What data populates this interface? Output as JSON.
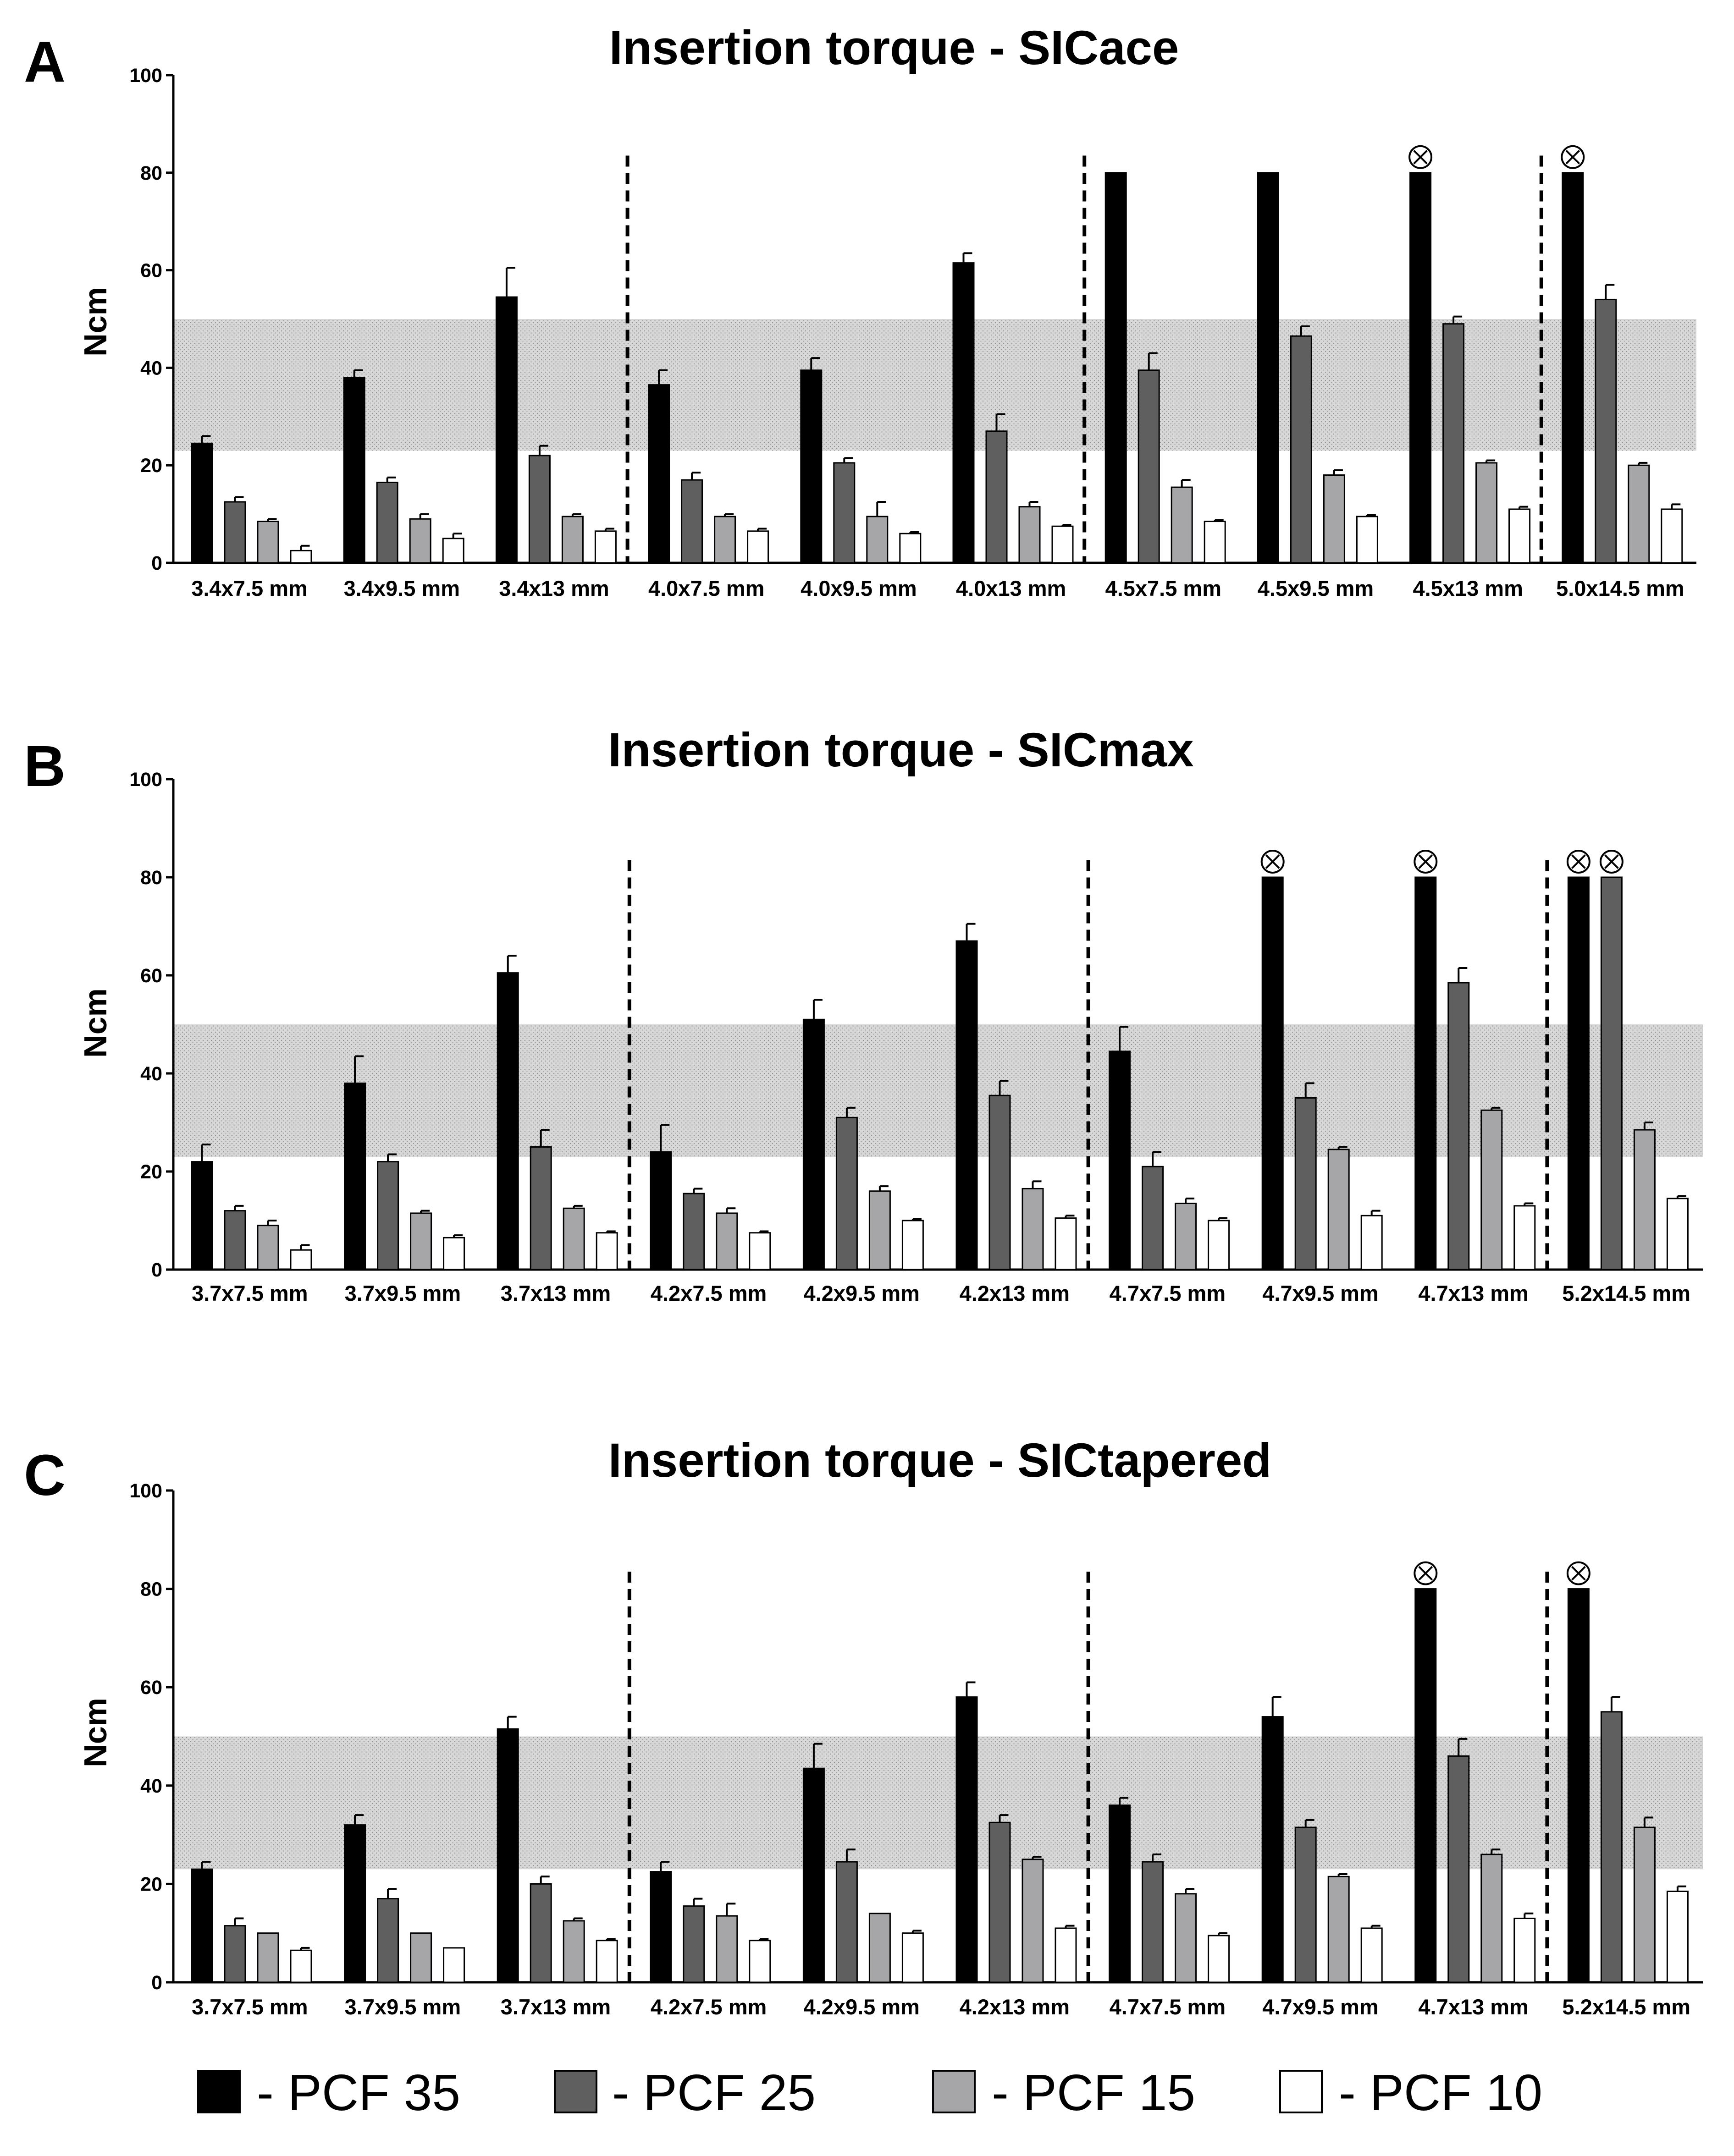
{
  "legend": [
    {
      "label": "- PCF 35",
      "color": "#000000"
    },
    {
      "label": "- PCF 25",
      "color": "#5f5f5f"
    },
    {
      "label": "- PCF 15",
      "color": "#a6a6a8"
    },
    {
      "label": "- PCF 10",
      "color": "#ffffff"
    }
  ],
  "shaded_band": {
    "from": 23,
    "to": 50,
    "color": "#d4d4d4"
  },
  "chart_data": [
    {
      "panel": "A",
      "type": "bar",
      "title": "Insertion torque - SICace",
      "ylabel": "Ncm",
      "xlabel": "",
      "ylim": [
        0,
        100
      ],
      "yticks": [
        0,
        20,
        40,
        60,
        80,
        100
      ],
      "categories": [
        "3.4x7.5 mm",
        "3.4x9.5 mm",
        "3.4x13 mm",
        "4.0x7.5 mm",
        "4.0x9.5 mm",
        "4.0x13 mm",
        "4.5x7.5 mm",
        "4.5x9.5 mm",
        "4.5x13 mm",
        "5.0x14.5 mm"
      ],
      "group_dividers_after": [
        2,
        5,
        8
      ],
      "series": [
        {
          "name": "PCF 35",
          "values": [
            24.5,
            38,
            54.5,
            36.5,
            39.5,
            61.5,
            80,
            80,
            80,
            80
          ],
          "errors": [
            1.5,
            1.5,
            6,
            3,
            2.5,
            2,
            0,
            0,
            0,
            0
          ]
        },
        {
          "name": "PCF 25",
          "values": [
            12.5,
            16.5,
            22,
            17,
            20.5,
            27,
            39.5,
            46.5,
            49,
            54
          ],
          "errors": [
            1,
            1,
            2,
            1.5,
            1,
            3.5,
            3.5,
            2,
            1.5,
            3
          ]
        },
        {
          "name": "PCF 15",
          "values": [
            8.5,
            9,
            9.5,
            9.5,
            9.5,
            11.5,
            15.5,
            18,
            20.5,
            20
          ],
          "errors": [
            0.5,
            1,
            0.5,
            0.5,
            3,
            1,
            1.5,
            1,
            0.5,
            0.5
          ]
        },
        {
          "name": "PCF 10",
          "values": [
            2.5,
            5,
            6.5,
            6.5,
            6,
            7.5,
            8.5,
            9.5,
            11,
            11
          ],
          "errors": [
            1,
            1,
            0.5,
            0.5,
            0.3,
            0.3,
            0.3,
            0.3,
            0.5,
            1
          ]
        }
      ],
      "exceeded_markers": [
        [
          8,
          0
        ],
        [
          9,
          0
        ]
      ]
    },
    {
      "panel": "B",
      "type": "bar",
      "title": "Insertion torque - SICmax",
      "ylabel": "Ncm",
      "xlabel": "",
      "ylim": [
        0,
        100
      ],
      "yticks": [
        0,
        20,
        40,
        60,
        80,
        100
      ],
      "categories": [
        "3.7x7.5 mm",
        "3.7x9.5 mm",
        "3.7x13 mm",
        "4.2x7.5 mm",
        "4.2x9.5 mm",
        "4.2x13 mm",
        "4.7x7.5 mm",
        "4.7x9.5 mm",
        "4.7x13 mm",
        "5.2x14.5 mm"
      ],
      "group_dividers_after": [
        2,
        5,
        8
      ],
      "series": [
        {
          "name": "PCF 35",
          "values": [
            22,
            38,
            60.5,
            24,
            51,
            67,
            44.5,
            80,
            80,
            80
          ],
          "errors": [
            3.5,
            5.5,
            3.5,
            5.5,
            4,
            3.5,
            5,
            0,
            0,
            0
          ]
        },
        {
          "name": "PCF 25",
          "values": [
            12,
            22,
            25,
            15.5,
            31,
            35.5,
            21,
            35,
            58.5,
            80
          ],
          "errors": [
            1,
            1.5,
            3.5,
            1,
            2,
            3,
            3,
            3,
            3,
            0
          ]
        },
        {
          "name": "PCF 15",
          "values": [
            9,
            11.5,
            12.5,
            11.5,
            16,
            16.5,
            13.5,
            24.5,
            32.5,
            28.5
          ],
          "errors": [
            1,
            0.5,
            0.5,
            1,
            1,
            1.5,
            1,
            0.5,
            0.5,
            1.5
          ]
        },
        {
          "name": "PCF 10",
          "values": [
            4,
            6.5,
            7.5,
            7.5,
            10,
            10.5,
            10,
            11,
            13,
            14.5
          ],
          "errors": [
            1,
            0.5,
            0.3,
            0.3,
            0.3,
            0.5,
            0.5,
            1,
            0.5,
            0.5
          ]
        }
      ],
      "exceeded_markers": [
        [
          7,
          0
        ],
        [
          8,
          0
        ],
        [
          9,
          0
        ],
        [
          9,
          1
        ]
      ]
    },
    {
      "panel": "C",
      "type": "bar",
      "title": "Insertion torque - SICtapered",
      "ylabel": "Ncm",
      "xlabel": "",
      "ylim": [
        0,
        100
      ],
      "yticks": [
        0,
        20,
        40,
        60,
        80,
        100
      ],
      "categories": [
        "3.7x7.5 mm",
        "3.7x9.5 mm",
        "3.7x13 mm",
        "4.2x7.5 mm",
        "4.2x9.5 mm",
        "4.2x13 mm",
        "4.7x7.5 mm",
        "4.7x9.5 mm",
        "4.7x13 mm",
        "5.2x14.5 mm"
      ],
      "group_dividers_after": [
        2,
        5,
        8
      ],
      "series": [
        {
          "name": "PCF 35",
          "values": [
            23,
            32,
            51.5,
            22.5,
            43.5,
            58,
            36,
            54,
            80,
            80
          ],
          "errors": [
            1.5,
            2,
            2.5,
            2,
            5,
            3,
            1.5,
            4,
            0,
            0
          ]
        },
        {
          "name": "PCF 25",
          "values": [
            11.5,
            17,
            20,
            15.5,
            24.5,
            32.5,
            24.5,
            31.5,
            46,
            55
          ],
          "errors": [
            1.5,
            2,
            1.5,
            1.5,
            2.5,
            1.5,
            1.5,
            1.5,
            3.5,
            3
          ]
        },
        {
          "name": "PCF 15",
          "values": [
            10,
            10,
            12.5,
            13.5,
            14,
            25,
            18,
            21.5,
            26,
            31.5
          ],
          "errors": [
            0,
            0,
            0.5,
            2.5,
            0,
            0.5,
            1,
            0.5,
            1,
            2
          ]
        },
        {
          "name": "PCF 10",
          "values": [
            6.5,
            7,
            8.5,
            8.5,
            10,
            11,
            9.5,
            11,
            13,
            18.5
          ],
          "errors": [
            0.5,
            0,
            0.3,
            0.3,
            0.5,
            0.5,
            0.5,
            0.5,
            1,
            1
          ]
        }
      ],
      "exceeded_markers": [
        [
          8,
          0
        ],
        [
          9,
          0
        ]
      ]
    }
  ]
}
